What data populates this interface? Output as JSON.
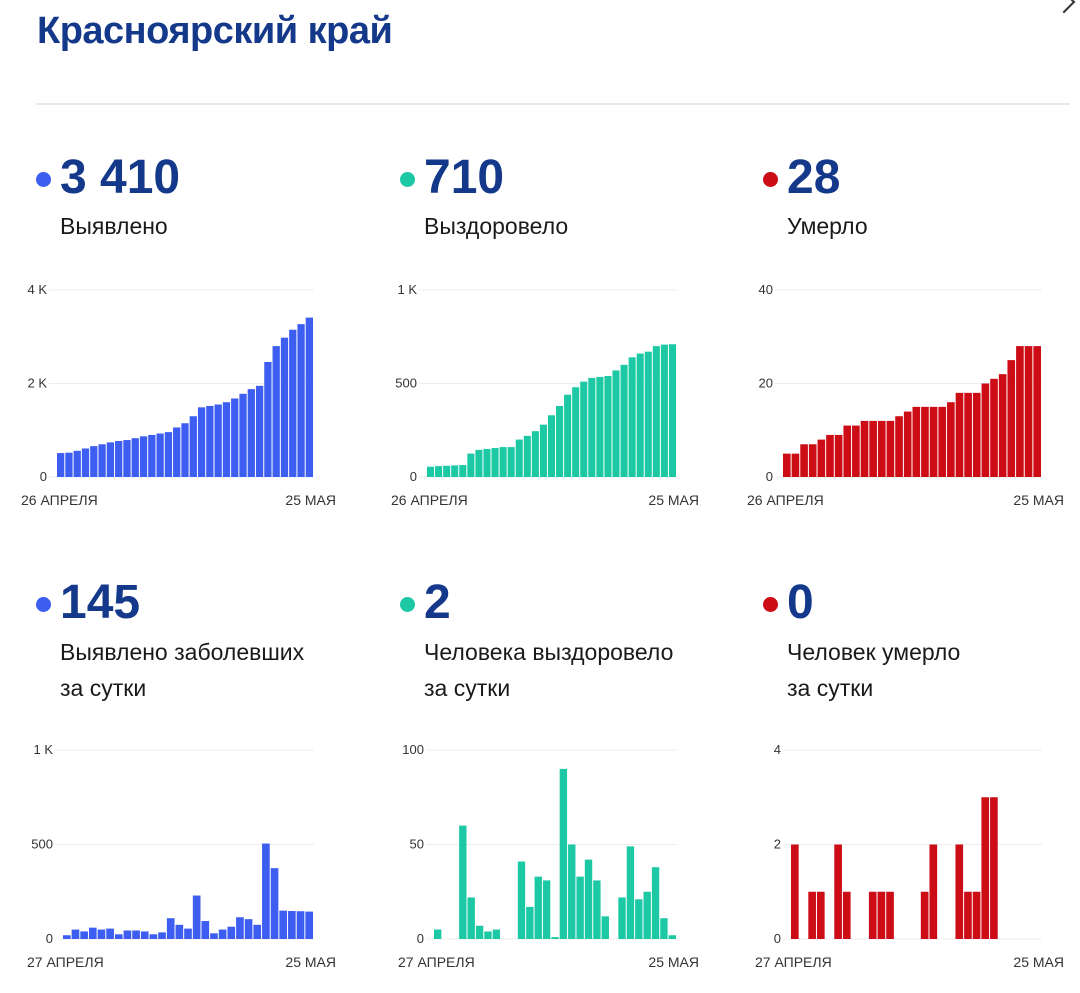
{
  "region_title": "Красноярский край",
  "colors": {
    "blue": "#3d5ef0",
    "green": "#1dc9a4",
    "red": "#cc0d16",
    "title": "#14388a"
  },
  "stats": [
    {
      "value": "3 410",
      "label_line1": "Выявлено",
      "label_line2": ""
    },
    {
      "value": "710",
      "label_line1": "Выздоровело",
      "label_line2": ""
    },
    {
      "value": "28",
      "label_line1": "Умерло",
      "label_line2": ""
    },
    {
      "value": "145",
      "label_line1": "Выявлено заболевших",
      "label_line2": "за сутки"
    },
    {
      "value": "2",
      "label_line1": "Человека выздоровело",
      "label_line2": "за сутки"
    },
    {
      "value": "0",
      "label_line1": "Человек умерло",
      "label_line2": "за сутки"
    }
  ],
  "chart_data": [
    {
      "type": "bar",
      "color_key": "blue",
      "ylim": [
        0,
        4000
      ],
      "ticks": [
        {
          "v": 0,
          "label": "0"
        },
        {
          "v": 2000,
          "label": "2 K"
        },
        {
          "v": 4000,
          "label": "4 K"
        }
      ],
      "x_start": "26 АПРЕЛЯ",
      "x_end": "25 МАЯ",
      "values": [
        512,
        520,
        560,
        610,
        660,
        700,
        740,
        770,
        790,
        830,
        870,
        900,
        930,
        960,
        1060,
        1150,
        1300,
        1490,
        1520,
        1550,
        1600,
        1680,
        1780,
        1880,
        1950,
        2460,
        2800,
        2980,
        3150,
        3270,
        3410
      ]
    },
    {
      "type": "bar",
      "color_key": "green",
      "ylim": [
        0,
        1000
      ],
      "ticks": [
        {
          "v": 0,
          "label": "0"
        },
        {
          "v": 500,
          "label": "500"
        },
        {
          "v": 1000,
          "label": "1 K"
        }
      ],
      "x_start": "26 АПРЕЛЯ",
      "x_end": "25 МАЯ",
      "values": [
        55,
        58,
        60,
        62,
        64,
        125,
        145,
        150,
        155,
        160,
        160,
        200,
        220,
        245,
        280,
        330,
        380,
        440,
        480,
        510,
        530,
        535,
        540,
        570,
        600,
        640,
        660,
        670,
        700,
        708,
        710
      ]
    },
    {
      "type": "bar",
      "color_key": "red",
      "ylim": [
        0,
        40
      ],
      "ticks": [
        {
          "v": 0,
          "label": "0"
        },
        {
          "v": 20,
          "label": "20"
        },
        {
          "v": 40,
          "label": "40"
        }
      ],
      "x_start": "26 АПРЕЛЯ",
      "x_end": "25 МАЯ",
      "values": [
        5,
        5,
        7,
        7,
        8,
        9,
        9,
        11,
        11,
        12,
        12,
        12,
        12,
        13,
        14,
        15,
        15,
        15,
        15,
        16,
        18,
        18,
        18,
        20,
        21,
        22,
        25,
        28,
        28,
        28
      ]
    },
    {
      "type": "bar",
      "color_key": "blue",
      "ylim": [
        0,
        1000
      ],
      "ticks": [
        {
          "v": 0,
          "label": "0"
        },
        {
          "v": 500,
          "label": "500"
        },
        {
          "v": 1000,
          "label": "1 K"
        }
      ],
      "x_start": "27 АПРЕЛЯ",
      "x_end": "25 МАЯ",
      "values": [
        20,
        50,
        40,
        60,
        50,
        55,
        25,
        45,
        45,
        40,
        25,
        35,
        110,
        75,
        55,
        230,
        95,
        30,
        50,
        65,
        115,
        105,
        75,
        505,
        375,
        150,
        148,
        147,
        145
      ]
    },
    {
      "type": "bar",
      "color_key": "green",
      "ylim": [
        0,
        100
      ],
      "ticks": [
        {
          "v": 0,
          "label": "0"
        },
        {
          "v": 50,
          "label": "50"
        },
        {
          "v": 100,
          "label": "100"
        }
      ],
      "x_start": "27 АПРЕЛЯ",
      "x_end": "25 МАЯ",
      "values": [
        5,
        0,
        0,
        60,
        22,
        7,
        4,
        5,
        0,
        0,
        41,
        17,
        33,
        31,
        1,
        90,
        50,
        33,
        42,
        31,
        12,
        0,
        22,
        49,
        21,
        25,
        38,
        11,
        2
      ]
    },
    {
      "type": "bar",
      "color_key": "red",
      "ylim": [
        0,
        4
      ],
      "ticks": [
        {
          "v": 0,
          "label": "0"
        },
        {
          "v": 2,
          "label": "2"
        },
        {
          "v": 4,
          "label": "4"
        }
      ],
      "x_start": "27 АПРЕЛЯ",
      "x_end": "25 МАЯ",
      "values": [
        2,
        0,
        1,
        1,
        0,
        2,
        1,
        0,
        0,
        1,
        1,
        1,
        0,
        0,
        0,
        1,
        2,
        0,
        0,
        2,
        1,
        1,
        3,
        3,
        0,
        0,
        0,
        0,
        0
      ]
    }
  ]
}
